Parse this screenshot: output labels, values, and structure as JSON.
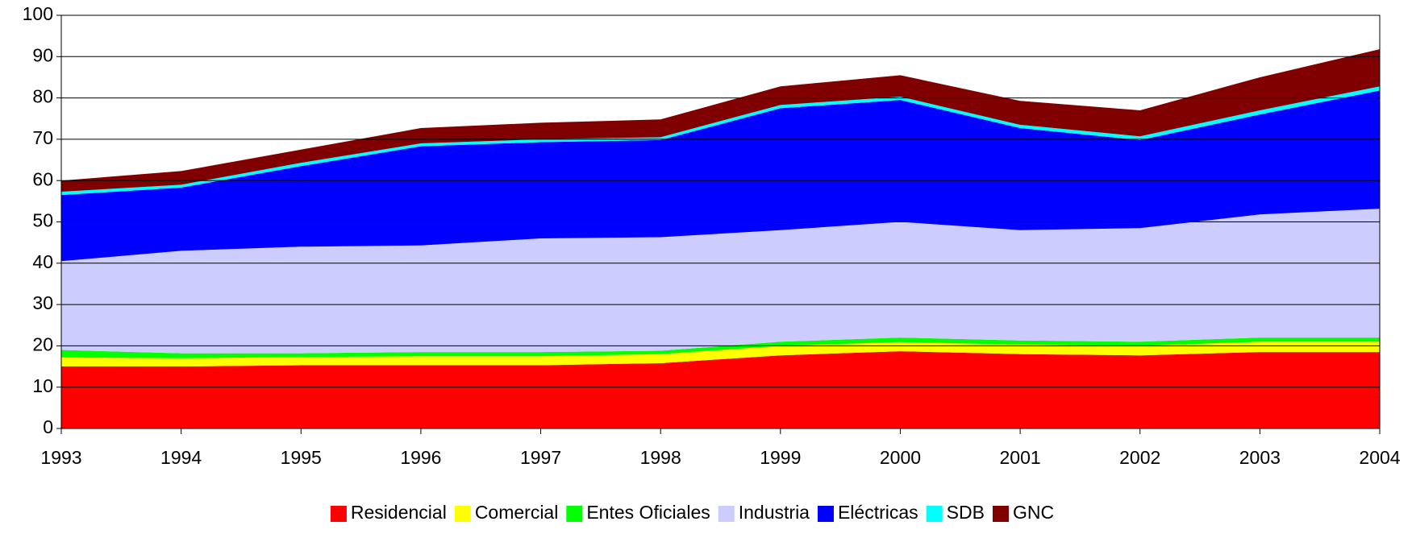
{
  "chart_data": {
    "type": "stacked_area",
    "categories": [
      "1993",
      "1994",
      "1995",
      "1996",
      "1997",
      "1998",
      "1999",
      "2000",
      "2001",
      "2002",
      "2003",
      "2004"
    ],
    "series": [
      {
        "name": "Residencial",
        "color": "#ff0000",
        "values": [
          15,
          15,
          15.3,
          15.3,
          15.3,
          15.8,
          17.7,
          18.7,
          18,
          17.7,
          18.5,
          18.5
        ]
      },
      {
        "name": "Comercial",
        "color": "#ffff00",
        "values": [
          2.2,
          2,
          2,
          2.2,
          2.2,
          2.2,
          2.3,
          2.2,
          2.3,
          2.3,
          2.5,
          2.5
        ]
      },
      {
        "name": "Entes Oficiales",
        "color": "#00ff00",
        "values": [
          1.8,
          1.2,
          0.9,
          1,
          1,
          0.8,
          1,
          1.1,
          1,
          1,
          1,
          1
        ]
      },
      {
        "name": "Industria",
        "color": "#ccccff",
        "values": [
          21.5,
          24.8,
          25.8,
          25.8,
          27.5,
          27.5,
          27,
          28,
          26.7,
          27.5,
          29.8,
          31.2
        ]
      },
      {
        "name": "Eléctricas",
        "color": "#0000ff",
        "values": [
          16,
          15.3,
          19.5,
          24,
          23.3,
          23.5,
          29.5,
          29.5,
          24.7,
          21.3,
          24.2,
          28.6
        ]
      },
      {
        "name": "SDB",
        "color": "#00ffff",
        "values": [
          0.8,
          0.7,
          0.8,
          0.7,
          0.7,
          0.7,
          0.8,
          0.8,
          0.8,
          0.9,
          1,
          1
        ]
      },
      {
        "name": "GNC",
        "color": "#800000",
        "values": [
          2.7,
          3.3,
          3.2,
          3.7,
          4,
          4.3,
          4.5,
          5.2,
          5.8,
          6.3,
          8,
          9
        ]
      }
    ],
    "ylim": [
      0,
      100
    ],
    "yticks": [
      0,
      10,
      20,
      30,
      40,
      50,
      60,
      70,
      80,
      90,
      100
    ],
    "grid": true,
    "legend": "bottom"
  }
}
